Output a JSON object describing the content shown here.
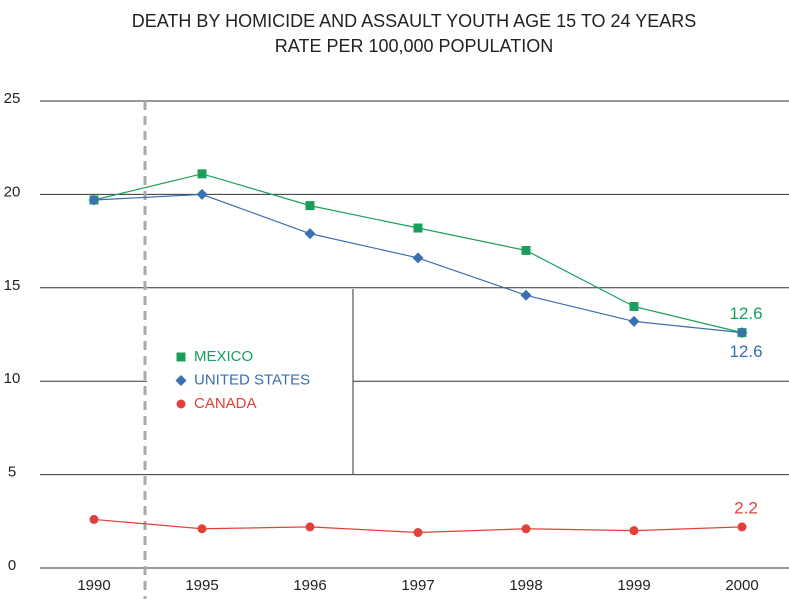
{
  "chart_data": {
    "type": "line",
    "title": [
      "DEATH BY HOMICIDE AND ASSAULT YOUTH AGE 15 TO 24 YEARS",
      "RATE PER 100,000 POPULATION"
    ],
    "categories": [
      "1990",
      "1995",
      "1996",
      "1997",
      "1998",
      "1999",
      "2000"
    ],
    "series": [
      {
        "name": "MEXICO",
        "color": "#1a9e5c",
        "marker": "square",
        "values": [
          19.7,
          21.1,
          19.4,
          18.2,
          17.0,
          14.0,
          12.6
        ]
      },
      {
        "name": "UNITED STATES",
        "color": "#3a6fb0",
        "marker": "diamond",
        "values": [
          19.7,
          20.0,
          17.9,
          16.6,
          14.6,
          13.2,
          12.6
        ]
      },
      {
        "name": "CANADA",
        "color": "#e2413a",
        "marker": "circle",
        "values": [
          2.6,
          2.1,
          2.2,
          1.9,
          2.1,
          2.0,
          2.2
        ]
      }
    ],
    "ylim": [
      0,
      25
    ],
    "yticks": [
      0,
      5,
      10,
      15,
      20,
      25
    ],
    "grid": true,
    "legend": "left"
  }
}
